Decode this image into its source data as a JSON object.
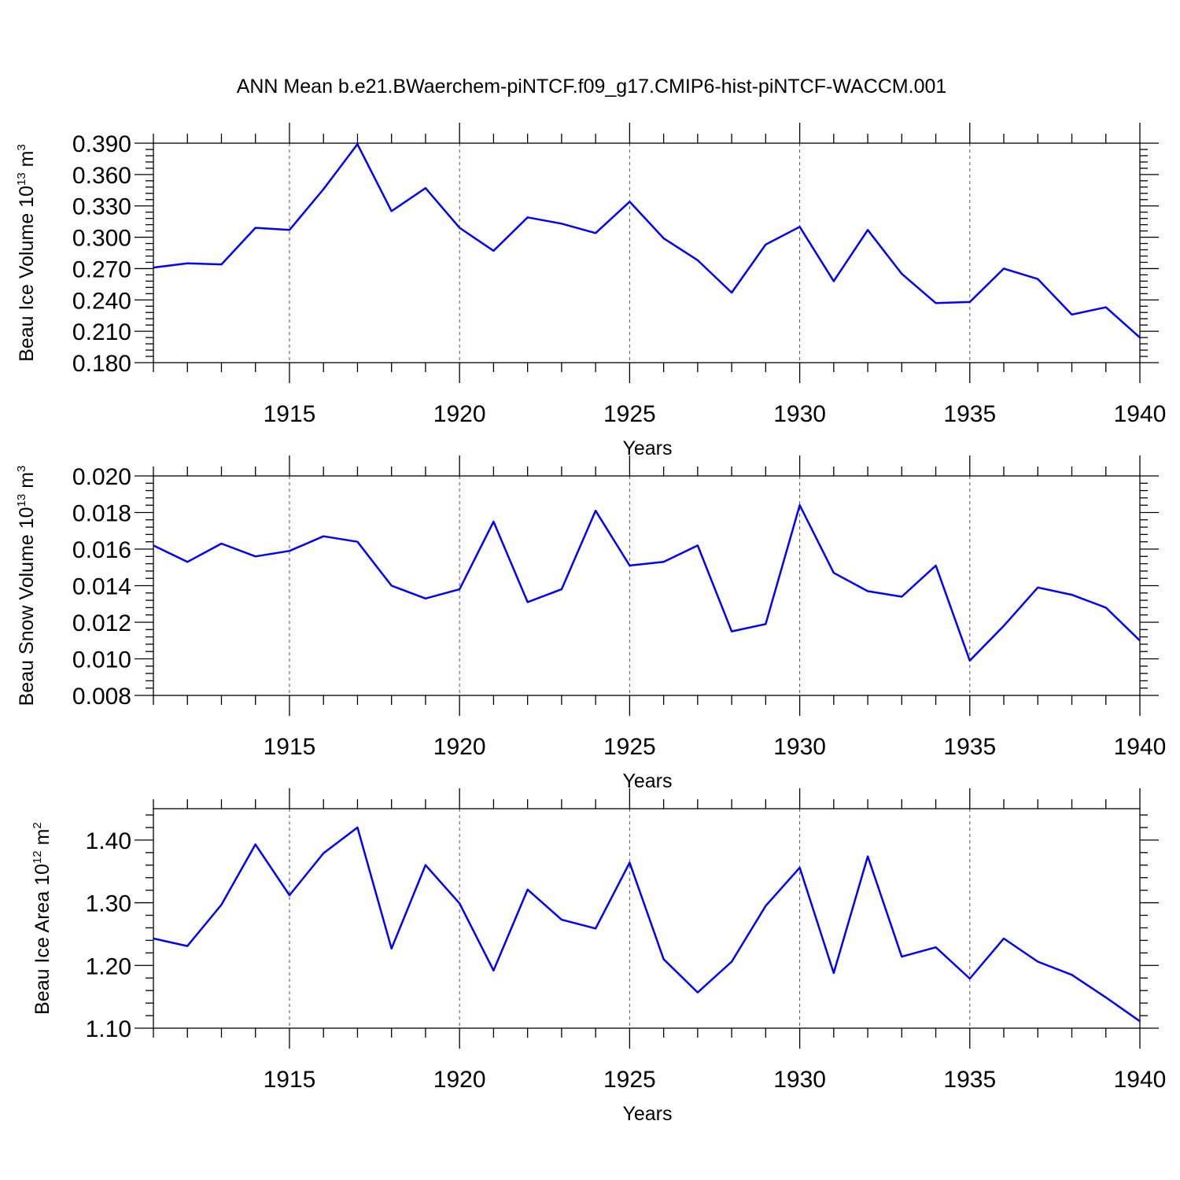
{
  "title": "ANN Mean b.e21.BWaerchem-piNTCF.f09_g17.CMIP6-hist-piNTCF-WACCM.001",
  "chart_data": [
    {
      "type": "line",
      "ylabel": "Beau Ice Volume 10",
      "ylabel_sup": "13",
      "ylabel_unit": " m",
      "ylabel_unit_sup": "3",
      "xlabel": "Years",
      "xlim": [
        1911,
        1940
      ],
      "ylim": [
        0.18,
        0.39
      ],
      "yticks": [
        "0.180",
        "0.210",
        "0.240",
        "0.270",
        "0.300",
        "0.330",
        "0.360",
        "0.390"
      ],
      "xticks": [
        "1915",
        "1920",
        "1925",
        "1930",
        "1935",
        "1940"
      ],
      "grid": "dashed vertical lines at labeled years",
      "color": "#0000ff",
      "x": [
        1911,
        1912,
        1913,
        1914,
        1915,
        1916,
        1917,
        1918,
        1919,
        1920,
        1921,
        1922,
        1923,
        1924,
        1925,
        1926,
        1927,
        1928,
        1929,
        1930,
        1931,
        1932,
        1933,
        1934,
        1935,
        1936,
        1937,
        1938,
        1939,
        1940
      ],
      "y": [
        0.271,
        0.275,
        0.274,
        0.309,
        0.307,
        0.346,
        0.389,
        0.325,
        0.347,
        0.309,
        0.287,
        0.319,
        0.313,
        0.304,
        0.334,
        0.299,
        0.278,
        0.247,
        0.293,
        0.31,
        0.258,
        0.307,
        0.265,
        0.237,
        0.238,
        0.27,
        0.26,
        0.226,
        0.233,
        0.204
      ]
    },
    {
      "type": "line",
      "ylabel": "Beau Snow Volume 10",
      "ylabel_sup": "13",
      "ylabel_unit": " m",
      "ylabel_unit_sup": "3",
      "xlabel": "Years",
      "xlim": [
        1911,
        1940
      ],
      "ylim": [
        0.008,
        0.02
      ],
      "yticks": [
        "0.008",
        "0.010",
        "0.012",
        "0.014",
        "0.016",
        "0.018",
        "0.020"
      ],
      "xticks": [
        "1915",
        "1920",
        "1925",
        "1930",
        "1935",
        "1940"
      ],
      "grid": "dashed vertical lines at labeled years",
      "color": "#0000ff",
      "x": [
        1911,
        1912,
        1913,
        1914,
        1915,
        1916,
        1917,
        1918,
        1919,
        1920,
        1921,
        1922,
        1923,
        1924,
        1925,
        1926,
        1927,
        1928,
        1929,
        1930,
        1931,
        1932,
        1933,
        1934,
        1935,
        1936,
        1937,
        1938,
        1939,
        1940
      ],
      "y": [
        0.0162,
        0.0153,
        0.0163,
        0.0156,
        0.0159,
        0.0167,
        0.0164,
        0.014,
        0.0133,
        0.0138,
        0.0175,
        0.0131,
        0.0138,
        0.0181,
        0.0151,
        0.0153,
        0.0162,
        0.0115,
        0.0119,
        0.0184,
        0.0147,
        0.0137,
        0.0134,
        0.0151,
        0.0099,
        0.0118,
        0.0139,
        0.0135,
        0.0128,
        0.011
      ]
    },
    {
      "type": "line",
      "ylabel": "Beau Ice Area 10",
      "ylabel_sup": "12",
      "ylabel_unit": " m",
      "ylabel_unit_sup": "2",
      "xlabel": "Years",
      "xlim": [
        1911,
        1940
      ],
      "ylim": [
        1.1,
        1.45
      ],
      "yticks": [
        "1.10",
        "1.20",
        "1.30",
        "1.40"
      ],
      "xticks": [
        "1915",
        "1920",
        "1925",
        "1930",
        "1935",
        "1940"
      ],
      "grid": "dashed vertical lines at labeled years",
      "color": "#0000ff",
      "x": [
        1911,
        1912,
        1913,
        1914,
        1915,
        1916,
        1917,
        1918,
        1919,
        1920,
        1921,
        1922,
        1923,
        1924,
        1925,
        1926,
        1927,
        1928,
        1929,
        1930,
        1931,
        1932,
        1933,
        1934,
        1935,
        1936,
        1937,
        1938,
        1939,
        1940
      ],
      "y": [
        1.243,
        1.231,
        1.297,
        1.393,
        1.312,
        1.379,
        1.42,
        1.227,
        1.36,
        1.299,
        1.192,
        1.321,
        1.273,
        1.259,
        1.364,
        1.21,
        1.157,
        1.206,
        1.295,
        1.356,
        1.188,
        1.374,
        1.214,
        1.229,
        1.179,
        1.243,
        1.206,
        1.185,
        1.149,
        1.111
      ]
    }
  ]
}
